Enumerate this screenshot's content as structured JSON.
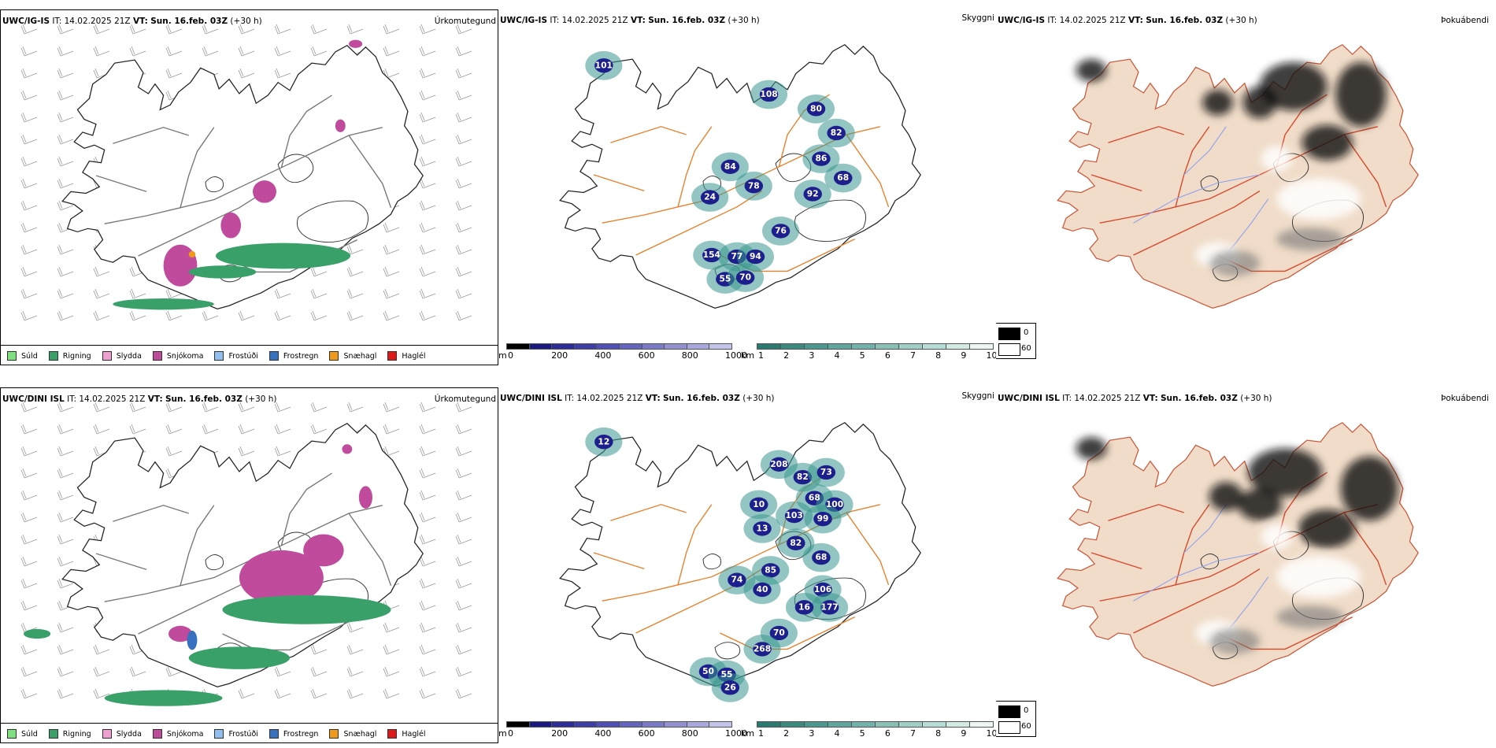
{
  "colors": {
    "rain_green": "#3aa06a",
    "snow_magenta": "#c04a9c",
    "drizzle_lgreen": "#7fe07f",
    "sleet_pink": "#f0a0d0",
    "freezing_drizzle": "#8fc0f0",
    "freezing_rain": "#3870c0",
    "snow_pellets": "#f09a1a",
    "hail_red": "#e01818",
    "vis_navy": "#1c1f8c",
    "vis_teal": "#3a9890",
    "road_orange": "#e8802a",
    "cloud_land": "#f0dcc8"
  },
  "rows": [
    {
      "id": "ig",
      "precip": {
        "model": "UWC/IG-IS",
        "it_label": "IT:",
        "it_value": "14.02.2025 21Z",
        "vt_label": "VT:",
        "vt_value": "Sun. 16.feb. 03Z",
        "lead": "(+30 h)",
        "title": "Úrkomutegund"
      },
      "visibility": {
        "model": "UWC/IG-IS",
        "it_label": "IT:",
        "it_value": "14.02.2025 21Z",
        "vt_label": "VT:",
        "vt_value": "Sun. 16.feb. 03Z",
        "lead": "(+30 h)",
        "title": "Skyggni",
        "numbers": [
          "101",
          "108",
          "80",
          "82",
          "86",
          "84",
          "78",
          "92",
          "68",
          "76",
          "154",
          "77",
          "94",
          "55",
          "70",
          "24"
        ]
      },
      "cloud": {
        "model": "UWC/IG-IS",
        "it_label": "IT:",
        "it_value": "14.02.2025 21Z",
        "vt_label": "VT:",
        "vt_value": "Sun. 16.feb. 03Z",
        "lead": "(+30 h)",
        "title": "Þokuábendi"
      }
    },
    {
      "id": "dini",
      "precip": {
        "model": "UWC/DINI ISL",
        "it_label": "IT:",
        "it_value": "14.02.2025 21Z",
        "vt_label": "VT:",
        "vt_value": "Sun. 16.feb. 03Z",
        "lead": "(+30 h)",
        "title": "Úrkomutegund"
      },
      "visibility": {
        "model": "UWC/DINI ISL",
        "it_label": "IT:",
        "it_value": "14.02.2025 21Z",
        "vt_label": "VT:",
        "vt_value": "Sun. 16.feb. 03Z",
        "lead": "(+30 h)",
        "title": "Skyggni",
        "numbers": [
          "12",
          "208",
          "82",
          "68",
          "73",
          "100",
          "99",
          "10",
          "13",
          "103",
          "82",
          "85",
          "68",
          "74",
          "40",
          "106",
          "177",
          "16",
          "70",
          "268",
          "50",
          "55",
          "26"
        ]
      },
      "cloud": {
        "model": "UWC/DINI ISL",
        "it_label": "IT:",
        "it_value": "14.02.2025 21Z",
        "vt_label": "VT:",
        "vt_value": "Sun. 16.feb. 03Z",
        "lead": "(+30 h)",
        "title": "Þokuábendi"
      }
    }
  ],
  "precip_legend": [
    {
      "label": "Súld",
      "color": "#7fe07f"
    },
    {
      "label": "Rigning",
      "color": "#3aa06a"
    },
    {
      "label": "Slydda",
      "color": "#f0a0d0"
    },
    {
      "label": "Snjókoma",
      "color": "#c04a9c"
    },
    {
      "label": "Frostúði",
      "color": "#8fc0f0"
    },
    {
      "label": "Frostregn",
      "color": "#3870c0"
    },
    {
      "label": "Snæhagl",
      "color": "#f09a1a"
    },
    {
      "label": "Haglél",
      "color": "#e01818"
    }
  ],
  "elevation_bar": {
    "unit": "m",
    "ticks": [
      "0",
      "200",
      "400",
      "600",
      "800",
      "1000"
    ],
    "colors": [
      "#000000",
      "#1a1a80",
      "#2c2c9a",
      "#3e3ea8",
      "#5050b4",
      "#6464be",
      "#7a7ac8",
      "#9090d2",
      "#a8a8dc",
      "#c4c4ea"
    ]
  },
  "visibility_bar": {
    "unit": "km",
    "ticks": [
      "1",
      "2",
      "3",
      "4",
      "5",
      "6",
      "7",
      "8",
      "9",
      "10"
    ],
    "colors": [
      "#2a7a72",
      "#3a8a82",
      "#4a9890",
      "#5ea69e",
      "#72b2aa",
      "#88c0b8",
      "#a0cec8",
      "#b8dcd6",
      "#d2eae6",
      "#ecf6f4"
    ]
  },
  "cloud_key": [
    {
      "label": "0",
      "color": "#000000"
    },
    {
      "label": "60",
      "color": "#ffffff"
    }
  ]
}
